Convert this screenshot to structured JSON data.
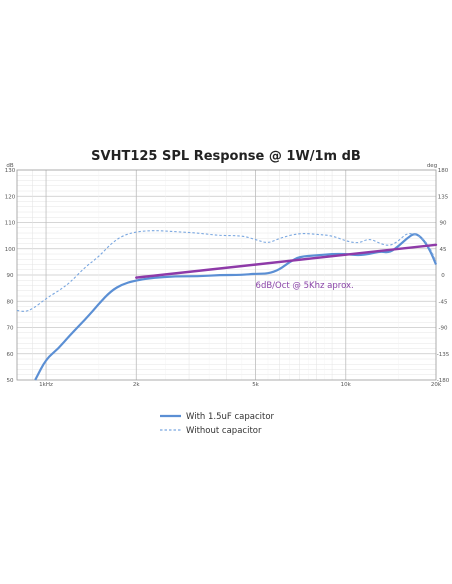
{
  "chart_data": {
    "type": "line",
    "title": "SVHT125 SPL Response @ 1W/1m dB",
    "xlabel": "",
    "ylabel": "dB",
    "y2label": "deg",
    "x_scale": "log",
    "xlim": [
      800,
      20000
    ],
    "ylim": [
      50,
      130
    ],
    "y2lim": [
      -180,
      180
    ],
    "x_tick_labels": [
      {
        "value": 1000,
        "label": "1kHz"
      },
      {
        "value": 2000,
        "label": "2k"
      },
      {
        "value": 5000,
        "label": "5k"
      },
      {
        "value": 10000,
        "label": "10k"
      },
      {
        "value": 20000,
        "label": "20k"
      }
    ],
    "y_ticks": [
      50,
      60,
      70,
      80,
      90,
      100,
      110,
      120,
      130
    ],
    "y2_ticks": [
      -180,
      -135,
      -90,
      -45,
      0,
      45,
      90,
      135,
      180
    ],
    "grid": true,
    "legend_position": "bottom-left",
    "series": [
      {
        "name": "With 1.5uF capacitor",
        "style": "solid",
        "color": "#5b8fd4",
        "x": [
          920,
          1000,
          1100,
          1200,
          1350,
          1500,
          1650,
          1800,
          2000,
          2300,
          2700,
          3200,
          3800,
          4500,
          5000,
          5500,
          6000,
          6500,
          7000,
          8000,
          9000,
          10000,
          11000,
          12000,
          13000,
          14000,
          15000,
          16000,
          17000,
          18000,
          19000,
          20000
        ],
        "y": [
          50,
          58,
          62,
          67,
          73,
          79,
          84,
          86.5,
          88,
          89,
          89.5,
          89.5,
          90,
          90,
          90.5,
          90.5,
          92,
          95,
          97,
          97.5,
          98,
          98,
          97.5,
          98,
          99,
          98.5,
          101,
          104,
          106,
          104,
          100,
          94
        ]
      },
      {
        "name": "Without capacitor",
        "style": "dashed",
        "color": "#7aa7e0",
        "x": [
          800,
          850,
          900,
          1000,
          1100,
          1200,
          1350,
          1500,
          1650,
          1800,
          2000,
          2300,
          2700,
          3200,
          3800,
          4500,
          5000,
          5500,
          6000,
          7000,
          8000,
          9000,
          10000,
          11000,
          12000,
          13000,
          14000,
          15000,
          16000,
          17000,
          18000,
          19000,
          20000
        ],
        "y": [
          76.5,
          76,
          77,
          81,
          84,
          87,
          93,
          97,
          102,
          105,
          106.5,
          107,
          106.5,
          106,
          105,
          105,
          103.5,
          102,
          104,
          106,
          105.5,
          105,
          103,
          102,
          104,
          102,
          101,
          103,
          106,
          105.5,
          104,
          101,
          95
        ]
      }
    ],
    "trend_line": {
      "color": "#8e3aa8",
      "x": [
        2000,
        20000
      ],
      "y": [
        89,
        101.5
      ]
    },
    "annotations": [
      {
        "text": "6dB/Oct @ 5Khz aprox.",
        "x": 5000,
        "y": 85
      }
    ]
  }
}
